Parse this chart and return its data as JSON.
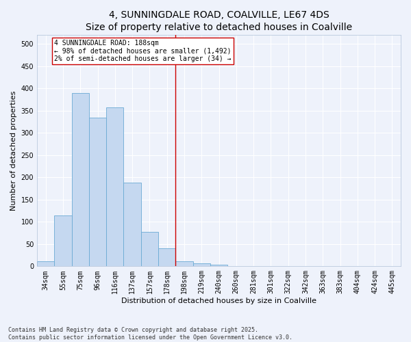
{
  "title": "4, SUNNINGDALE ROAD, COALVILLE, LE67 4DS",
  "subtitle": "Size of property relative to detached houses in Coalville",
  "xlabel": "Distribution of detached houses by size in Coalville",
  "ylabel": "Number of detached properties",
  "bar_color": "#c5d8f0",
  "bar_edge_color": "#6aaad4",
  "background_color": "#eef2fb",
  "grid_color": "#ffffff",
  "categories": [
    "34sqm",
    "55sqm",
    "75sqm",
    "96sqm",
    "116sqm",
    "137sqm",
    "157sqm",
    "178sqm",
    "198sqm",
    "219sqm",
    "240sqm",
    "260sqm",
    "281sqm",
    "301sqm",
    "322sqm",
    "342sqm",
    "363sqm",
    "383sqm",
    "404sqm",
    "424sqm",
    "445sqm"
  ],
  "values": [
    11,
    115,
    390,
    335,
    358,
    188,
    78,
    40,
    12,
    7,
    4,
    0,
    0,
    0,
    0,
    1,
    0,
    0,
    0,
    0,
    0
  ],
  "ylim": [
    0,
    520
  ],
  "yticks": [
    0,
    50,
    100,
    150,
    200,
    250,
    300,
    350,
    400,
    450,
    500
  ],
  "property_line_x": 7.5,
  "annotation_title": "4 SUNNINGDALE ROAD: 188sqm",
  "annotation_line1": "← 98% of detached houses are smaller (1,492)",
  "annotation_line2": "2% of semi-detached houses are larger (34) →",
  "annotation_box_color": "#ffffff",
  "annotation_box_edge_color": "#cc0000",
  "property_line_color": "#cc0000",
  "footnote1": "Contains HM Land Registry data © Crown copyright and database right 2025.",
  "footnote2": "Contains public sector information licensed under the Open Government Licence v3.0.",
  "title_fontsize": 10,
  "subtitle_fontsize": 9,
  "ylabel_fontsize": 8,
  "xlabel_fontsize": 8,
  "tick_fontsize": 7,
  "footnote_fontsize": 6,
  "annotation_fontsize": 7
}
